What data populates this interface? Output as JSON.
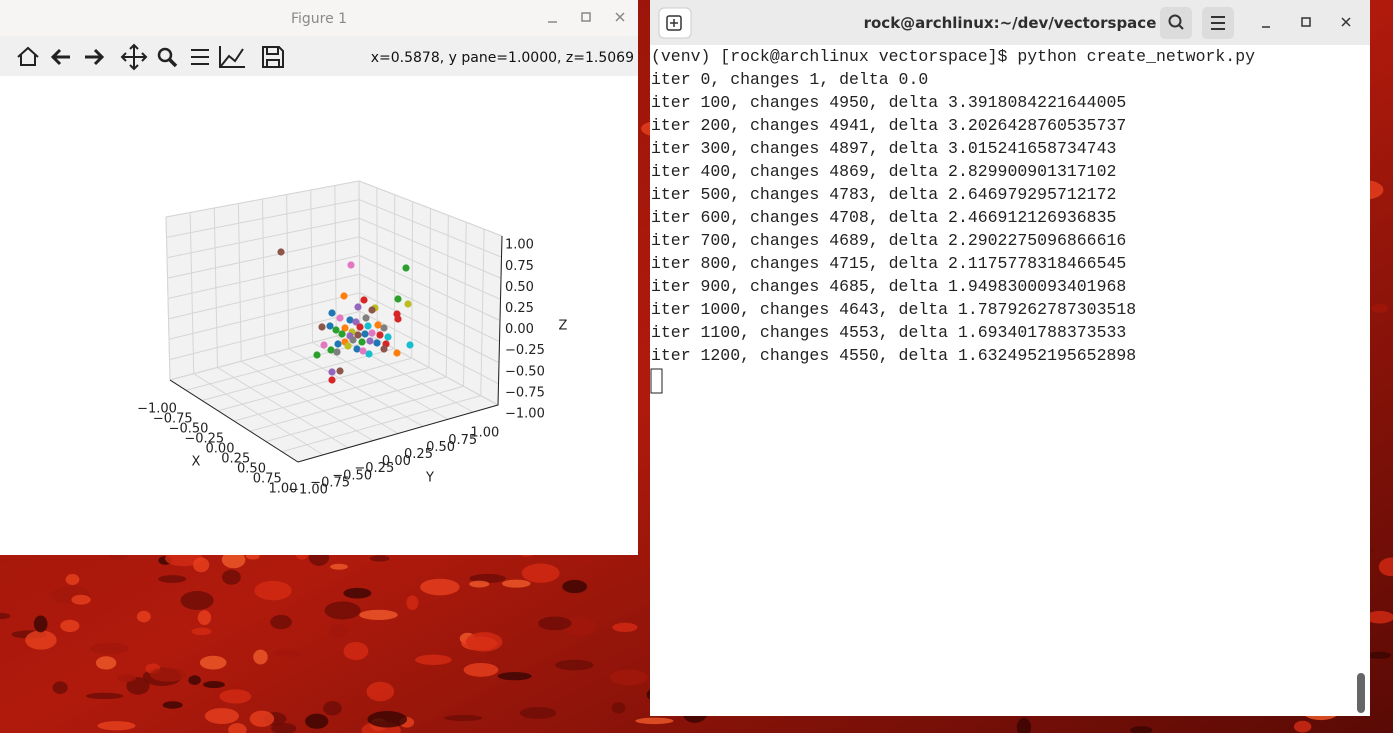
{
  "figure_window": {
    "title": "Figure 1",
    "status": "x=0.5878, y pane=1.0000, z=1.5069",
    "plot": {
      "x_label": "X",
      "y_label": "Y",
      "z_label": "Z",
      "x_ticks": [
        "−1.00",
        "−0.75",
        "−0.50",
        "−0.25",
        "0.00",
        "0.25",
        "0.50",
        "0.75",
        "1.00"
      ],
      "y_ticks": [
        "−1.00",
        "−0.75",
        "−0.50",
        "−0.25",
        "0.00",
        "0.25",
        "0.50",
        "0.75",
        "1.00"
      ],
      "z_ticks": [
        "−1.00",
        "−0.75",
        "−0.50",
        "−0.25",
        "0.00",
        "0.25",
        "0.50",
        "0.75",
        "1.00"
      ]
    }
  },
  "terminal": {
    "title": "rock@archlinux:~/dev/vectorspace",
    "lines": [
      "(venv) [rock@archlinux vectorspace]$ python create_network.py",
      "iter 0, changes 1, delta 0.0",
      "iter 100, changes 4950, delta 3.3918084221644005",
      "iter 200, changes 4941, delta 3.2026428760535737",
      "iter 300, changes 4897, delta 3.015241658734743",
      "iter 400, changes 4869, delta 2.829900901317102",
      "iter 500, changes 4783, delta 2.646979295712172",
      "iter 600, changes 4708, delta 2.466912126936835",
      "iter 700, changes 4689, delta 2.2902275096866616",
      "iter 800, changes 4715, delta 2.1175778318466545",
      "iter 900, changes 4685, delta 1.9498300093401968",
      "iter 1000, changes 4643, delta 1.7879262787303518",
      "iter 1100, changes 4553, delta 1.693401788373533",
      "iter 1200, changes 4550, delta 1.6324952195652898"
    ]
  }
}
